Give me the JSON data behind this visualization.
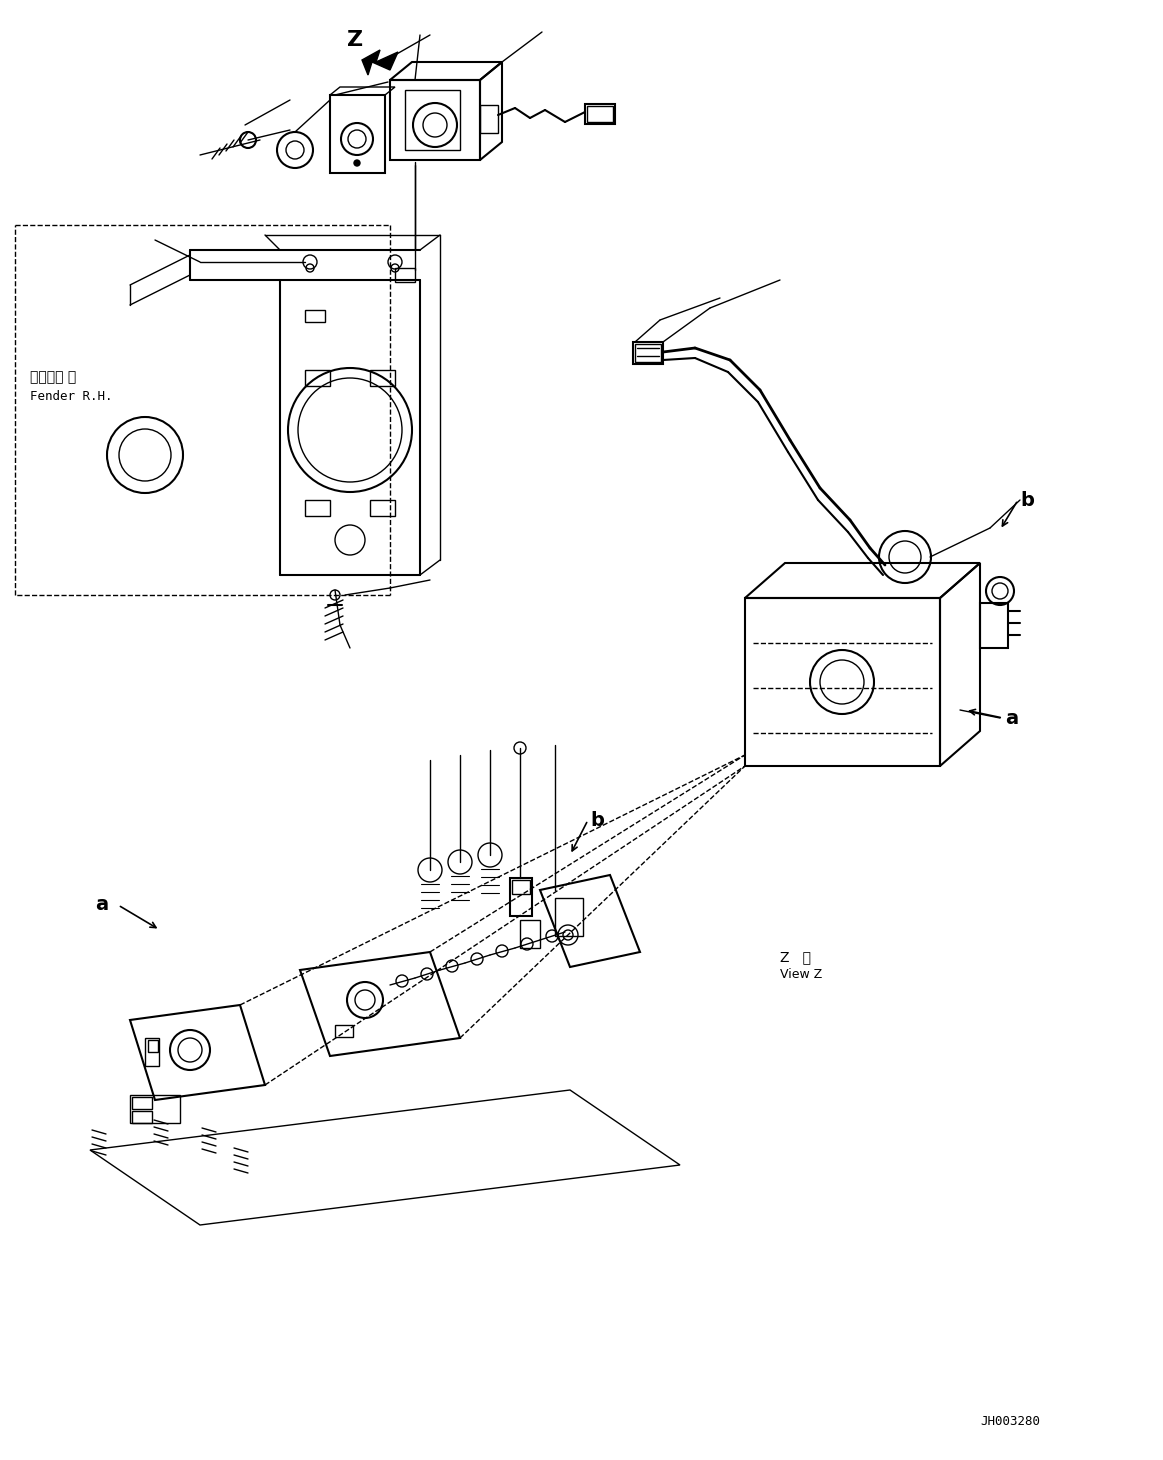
{
  "fig_width": 11.63,
  "fig_height": 14.6,
  "dpi": 100,
  "bg_color": "#ffffff",
  "line_color": "#000000",
  "diagram_code": "JH003280",
  "fender_text_line1": "フェンダ 右",
  "fender_text_line2": "Fender R.H.",
  "view_z_line1": "Z   視",
  "view_z_line2": "View Z"
}
